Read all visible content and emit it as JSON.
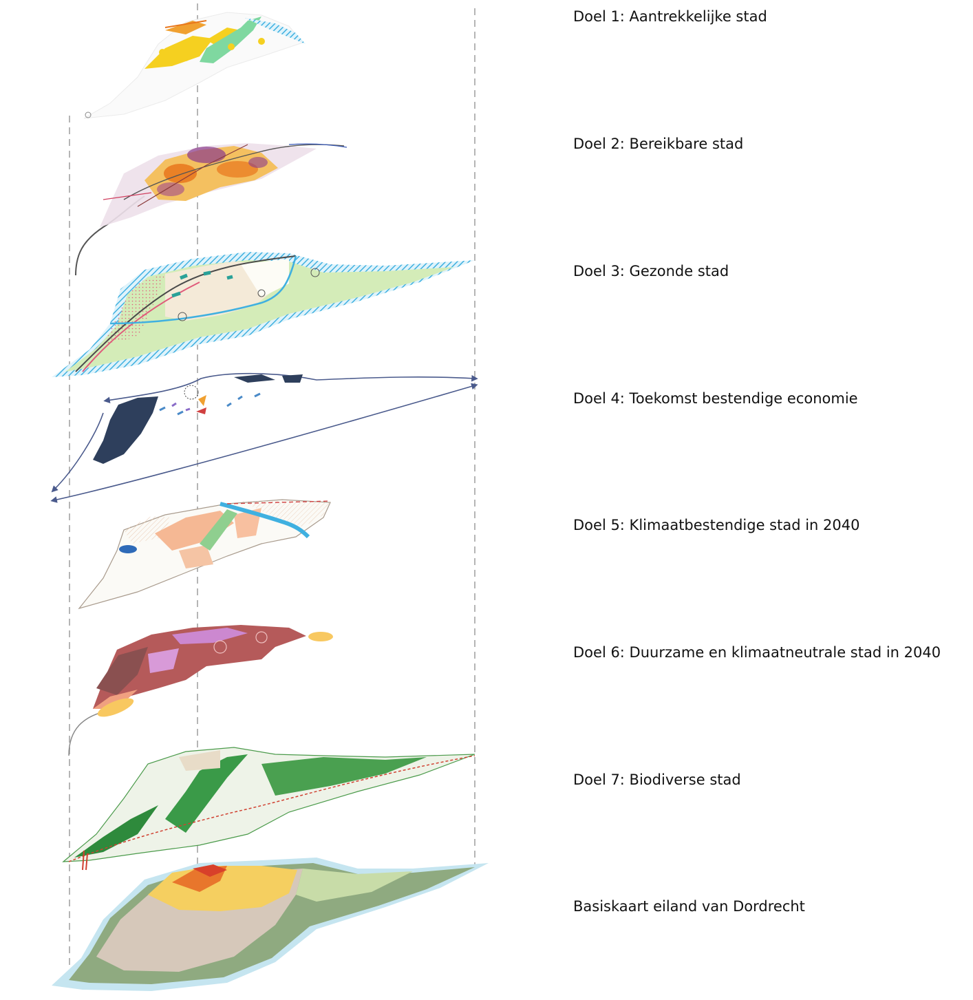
{
  "layers": [
    {
      "label": "Doel 1: Aantrekkelijke stad",
      "theme": "attractive-city",
      "colors": [
        "#f5d020",
        "#f0a030",
        "#7fd8a0",
        "#5bc8b8"
      ]
    },
    {
      "label": "Doel 2: Bereikbare stad",
      "theme": "accessible-city",
      "colors": [
        "#e8761c",
        "#8a3a8c",
        "#f4c060",
        "#555555"
      ]
    },
    {
      "label": "Doel 3: Gezonde stad",
      "theme": "healthy-city",
      "colors": [
        "#3fb0e0",
        "#c8e6a0",
        "#2aa198",
        "#e05a7a"
      ]
    },
    {
      "label": "Doel 4: Toekomst bestendige economie",
      "theme": "future-proof-economy",
      "colors": [
        "#2e3f5c",
        "#4a5a8c",
        "#8a6cc8",
        "#f0a030"
      ]
    },
    {
      "label": "Doel 5: Klimaatbestendige stad in 2040",
      "theme": "climate-resilient-city",
      "colors": [
        "#f5b894",
        "#3a9ad8",
        "#8fcf8f",
        "#d04040"
      ]
    },
    {
      "label": "Doel 6: Duurzame en klimaatneutrale stad in 2040",
      "theme": "sustainable-climate-neutral-city",
      "colors": [
        "#b85a5a",
        "#cc88d0",
        "#f5b84a",
        "#8a5050"
      ]
    },
    {
      "label": "Doel 7: Biodiverse stad",
      "theme": "biodiverse-city",
      "colors": [
        "#2e8a3c",
        "#6ab04c",
        "#d04030",
        "#e8e0c8"
      ]
    },
    {
      "label": "Basiskaart eiland van Dordrecht",
      "theme": "base-map",
      "colors": [
        "#b8e0ee",
        "#88a878",
        "#d8c8b8",
        "#f0a030"
      ]
    }
  ]
}
